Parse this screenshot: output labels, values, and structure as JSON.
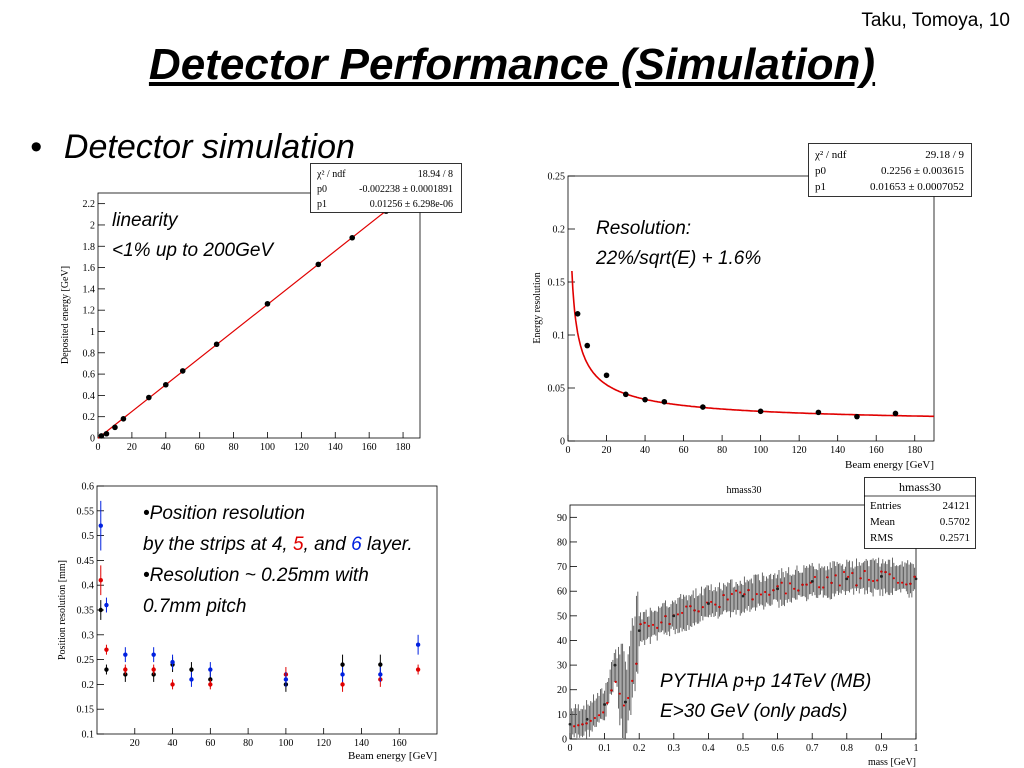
{
  "header": {
    "author": "Taku, Tomoya, 10",
    "title": "Detector Performance (Simulation)",
    "bullet": "Detector simulation"
  },
  "colors": {
    "fit": "#e00000",
    "points": "#000000",
    "red": "#e00000",
    "blue": "#0020e0"
  },
  "chart_data": [
    {
      "type": "scatter",
      "name": "linearity",
      "xlabel": "",
      "ylabel": "Deposited energy [GeV]",
      "xlim": [
        0,
        190
      ],
      "ylim": [
        0,
        2.3
      ],
      "xticks": [
        0,
        20,
        40,
        60,
        80,
        100,
        120,
        140,
        160,
        180
      ],
      "yticks": [
        0,
        0.2,
        0.4,
        0.6,
        0.8,
        1,
        1.2,
        1.4,
        1.6,
        1.8,
        2,
        2.2
      ],
      "x": [
        2,
        5,
        10,
        15,
        30,
        40,
        50,
        70,
        100,
        130,
        150,
        170
      ],
      "y": [
        0.02,
        0.04,
        0.1,
        0.18,
        0.38,
        0.5,
        0.63,
        0.88,
        1.26,
        1.63,
        1.88,
        2.13
      ],
      "fit": {
        "p0": -0.002238,
        "p1": 0.01256,
        "range": [
          0,
          175
        ]
      },
      "stats": [
        {
          "label": "χ² / ndf",
          "value": "18.94 / 8"
        },
        {
          "label": "p0",
          "value": "-0.002238 ± 0.0001891"
        },
        {
          "label": "p1",
          "value": "0.01256 ± 6.298e-06"
        }
      ],
      "annotation": [
        "linearity",
        "<1% up to 200GeV"
      ]
    },
    {
      "type": "scatter",
      "name": "resolution",
      "xlabel": "Beam energy [GeV]",
      "ylabel": "Energy resolution",
      "xlim": [
        0,
        190
      ],
      "ylim": [
        0,
        0.25
      ],
      "xticks": [
        0,
        20,
        40,
        60,
        80,
        100,
        120,
        140,
        160,
        180
      ],
      "yticks": [
        0,
        0.05,
        0.1,
        0.15,
        0.2,
        0.25
      ],
      "x": [
        5,
        10,
        20,
        30,
        40,
        50,
        70,
        100,
        130,
        150,
        170
      ],
      "y": [
        0.12,
        0.09,
        0.062,
        0.044,
        0.039,
        0.037,
        0.032,
        0.028,
        0.027,
        0.023,
        0.026
      ],
      "fit": {
        "p0": 0.2256,
        "p1": 0.01653,
        "range": [
          2,
          190
        ]
      },
      "stats": [
        {
          "label": "χ² / ndf",
          "value": "29.18 / 9"
        },
        {
          "label": "p0",
          "value": "0.2256 ± 0.003615"
        },
        {
          "label": "p1",
          "value": "0.01653 ± 0.0007052"
        }
      ],
      "annotation": [
        "Resolution:",
        "22%/sqrt(E) + 1.6%"
      ]
    },
    {
      "type": "scatter",
      "name": "position-resolution",
      "xlabel": "Beam energy [GeV]",
      "ylabel": "Position resolution [mm]",
      "xlim": [
        0,
        180
      ],
      "ylim": [
        0.1,
        0.6
      ],
      "xticks": [
        20,
        40,
        60,
        80,
        100,
        120,
        140,
        160
      ],
      "yticks": [
        0.1,
        0.15,
        0.2,
        0.25,
        0.3,
        0.35,
        0.4,
        0.45,
        0.5,
        0.55,
        0.6
      ],
      "series": [
        {
          "name": "4",
          "color": "#000000",
          "x": [
            2,
            5,
            15,
            30,
            40,
            50,
            60,
            100,
            130,
            150
          ],
          "y": [
            0.35,
            0.23,
            0.22,
            0.22,
            0.24,
            0.23,
            0.21,
            0.2,
            0.24,
            0.24
          ],
          "err": [
            0.02,
            0.01,
            0.015,
            0.015,
            0.015,
            0.015,
            0.015,
            0.015,
            0.02,
            0.02
          ]
        },
        {
          "name": "5",
          "color": "#e00000",
          "x": [
            2,
            5,
            15,
            30,
            40,
            60,
            100,
            130,
            150,
            170
          ],
          "y": [
            0.41,
            0.27,
            0.23,
            0.23,
            0.2,
            0.2,
            0.22,
            0.2,
            0.21,
            0.23
          ],
          "err": [
            0.03,
            0.01,
            0.01,
            0.01,
            0.01,
            0.01,
            0.015,
            0.015,
            0.015,
            0.01
          ]
        },
        {
          "name": "6",
          "color": "#0020e0",
          "x": [
            2,
            5,
            15,
            30,
            40,
            50,
            60,
            100,
            130,
            150,
            170
          ],
          "y": [
            0.52,
            0.36,
            0.26,
            0.26,
            0.245,
            0.21,
            0.23,
            0.21,
            0.22,
            0.22,
            0.28
          ],
          "err": [
            0.05,
            0.015,
            0.015,
            0.015,
            0.015,
            0.015,
            0.015,
            0.015,
            0.015,
            0.015,
            0.02
          ]
        }
      ],
      "annotation": {
        "line1": "•Position resolution",
        "line2_prefix": "by  the strips at  4, ",
        "line2_5": "5",
        "line2_mid": ", and ",
        "line2_6": "6",
        "line2_suffix": " layer.",
        "line3": "•Resolution ~ 0.25mm with",
        "line4": "0.7mm pitch"
      }
    },
    {
      "type": "scatter",
      "name": "hmass30",
      "title": "hmass30",
      "xlabel": "mass [GeV]",
      "ylabel": "",
      "xlim": [
        0,
        1
      ],
      "ylim": [
        0,
        95
      ],
      "xticks": [
        0,
        0.1,
        0.2,
        0.3,
        0.4,
        0.5,
        0.6,
        0.7,
        0.8,
        0.9,
        1
      ],
      "yticks": [
        0,
        10,
        20,
        30,
        40,
        50,
        60,
        70,
        80,
        90
      ],
      "x": [
        0.0,
        0.05,
        0.1,
        0.13,
        0.16,
        0.2,
        0.3,
        0.4,
        0.5,
        0.6,
        0.7,
        0.8,
        0.9,
        1.0
      ],
      "y": [
        6,
        8,
        14,
        30,
        15,
        44,
        50,
        55,
        58,
        61,
        64,
        65,
        66,
        65
      ],
      "stats": [
        {
          "label": "hmass30",
          "value": ""
        },
        {
          "label": "Entries",
          "value": "24121"
        },
        {
          "label": "Mean",
          "value": "0.5702"
        },
        {
          "label": "RMS",
          "value": "0.2571"
        }
      ],
      "annotation": [
        "PYTHIA p+p 14TeV (MB)",
        "E>30 GeV (only pads)"
      ]
    }
  ]
}
